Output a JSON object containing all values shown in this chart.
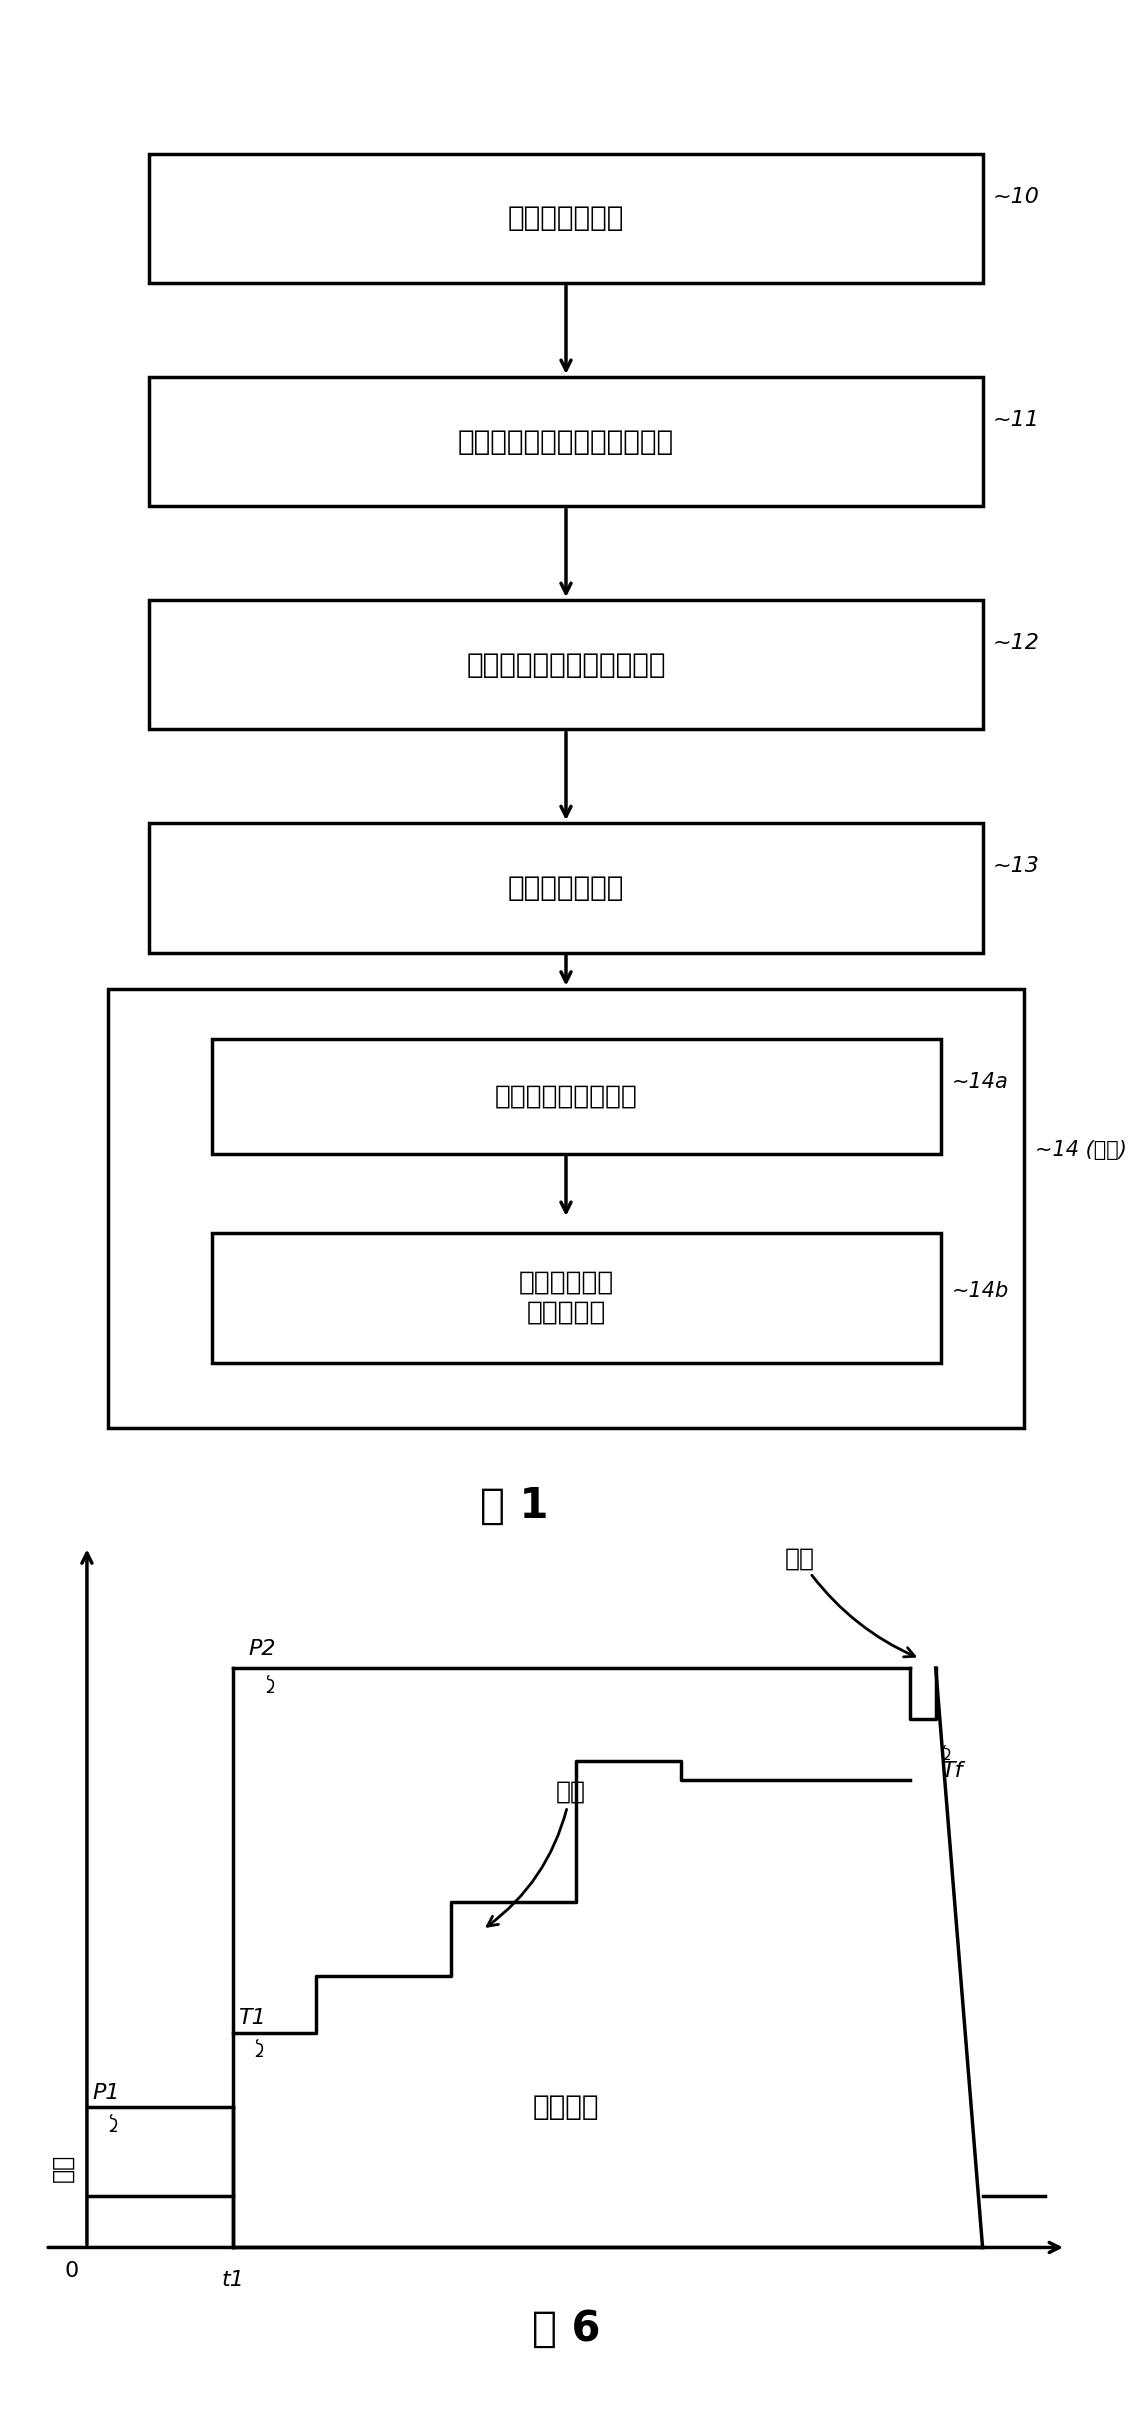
{
  "box1_text": "准备纤维预制品",
  "box2_text": "将预制品置于热压罐中的模具",
  "box3_text": "准备用于注入的树脂组合物",
  "box4_text": "注入树脂组合物",
  "box5a_text": "真空脱气的初始阶段",
  "box5b_text": "在压力下聚合\n的最后阶段",
  "label10": "~10",
  "label11": "~11",
  "label12": "~12",
  "label13": "~13",
  "label14a": "~14a",
  "label14b": "~14b",
  "label14": "~14 (聚合)",
  "fig1": "图 1",
  "fig6": "图 6",
  "pressure_lbl": "压力",
  "temperature_lbl": "温度",
  "vacuum_lbl": "真空",
  "vacuum_off_lbl": "真空关闭",
  "P1": "P1",
  "P2": "P2",
  "T1": "T1",
  "Tf": "Tf",
  "t1_lbl": "t1",
  "zero_lbl": "0",
  "background_color": "#ffffff"
}
